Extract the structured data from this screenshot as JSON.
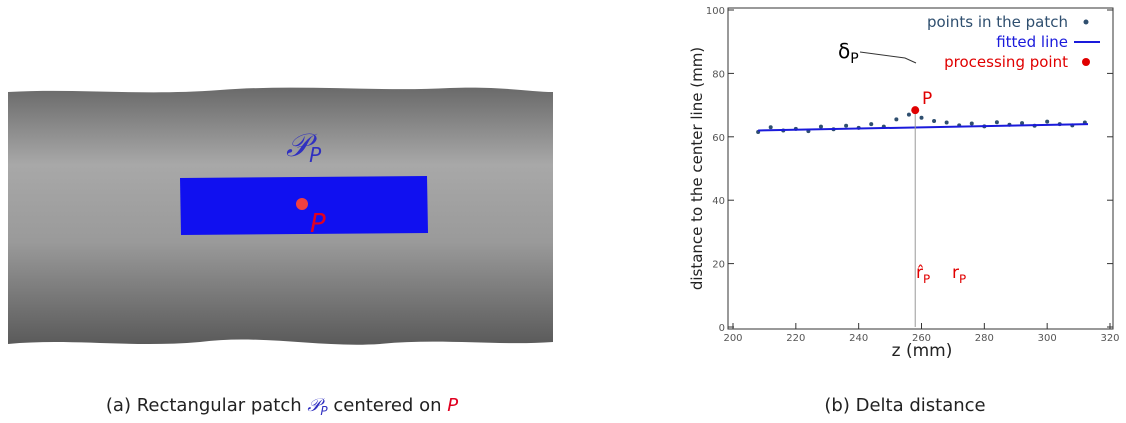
{
  "panel_a": {
    "patch_label": "𝒫",
    "patch_subscript": "P",
    "point_label": "P"
  },
  "captions": {
    "a": [
      "(a) Rectangular patch ",
      "𝒫",
      "P",
      " centered on ",
      "P"
    ],
    "b": "(b) Delta distance"
  },
  "chart_data": {
    "type": "scatter",
    "xlabel": "z (mm)",
    "ylabel": "distance to the center line (mm)",
    "xlim": [
      200,
      320
    ],
    "ylim": [
      0,
      100
    ],
    "xticks": [
      200,
      220,
      240,
      260,
      280,
      300,
      320
    ],
    "yticks": [
      0,
      20,
      40,
      60,
      80,
      100
    ],
    "series": [
      {
        "name": "points in the patch",
        "color": "#2f4f6f",
        "kind": "points",
        "x": [
          208,
          212,
          216,
          220,
          224,
          228,
          232,
          236,
          240,
          244,
          248,
          252,
          256,
          260,
          264,
          268,
          272,
          276,
          280,
          284,
          288,
          292,
          296,
          300,
          304,
          308,
          312
        ],
        "values": [
          61.5,
          63,
          62,
          62.5,
          61.8,
          63.2,
          62.4,
          63.5,
          62.8,
          64,
          63.2,
          65.5,
          67,
          66,
          65,
          64.5,
          63.6,
          64.2,
          63.3,
          64.6,
          63.8,
          64.3,
          63.5,
          64.8,
          64,
          63.6,
          64.5
        ]
      },
      {
        "name": "fitted line",
        "color": "#1a1adb",
        "kind": "line",
        "x": [
          208,
          313
        ],
        "values": [
          62,
          64
        ]
      },
      {
        "name": "processing point",
        "color": "#e00000",
        "kind": "point",
        "x": [
          258
        ],
        "values": [
          68.4
        ]
      }
    ],
    "annotations": [
      {
        "text": "δ",
        "sub": "P",
        "color": "#000000"
      },
      {
        "text": "P",
        "color": "#e00000"
      },
      {
        "text": "r̂",
        "sub": "P",
        "color": "#e00000"
      },
      {
        "text": "r",
        "sub": "P",
        "color": "#e00000"
      }
    ]
  }
}
